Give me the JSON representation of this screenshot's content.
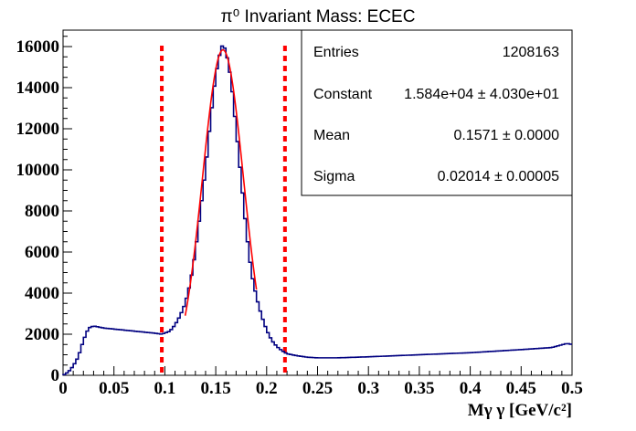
{
  "chart_data": {
    "type": "histogram",
    "title": "π⁰ Invariant Mass: ECEC",
    "xlabel": "Mγ γ [GeV/c²]",
    "ylabel": "",
    "xlim": [
      0,
      0.5
    ],
    "ylim": [
      0,
      16800
    ],
    "x_ticks": [
      "0",
      "0.05",
      "0.1",
      "0.15",
      "0.2",
      "0.25",
      "0.3",
      "0.35",
      "0.4",
      "0.45",
      "0.5"
    ],
    "y_ticks": [
      "0",
      "2000",
      "4000",
      "6000",
      "8000",
      "10000",
      "12000",
      "14000",
      "16000"
    ],
    "grid": false,
    "histogram_color": "#000080",
    "fit_color": "#ff0000",
    "cut_line_color": "#ff0000",
    "cut_lines_x": [
      0.097,
      0.218
    ],
    "fit": {
      "function": "gaus",
      "constant": 15840,
      "mean": 0.1571,
      "sigma": 0.02014,
      "range": [
        0.12,
        0.19
      ]
    },
    "histogram_points": [
      [
        0.0,
        0
      ],
      [
        0.005,
        150
      ],
      [
        0.01,
        450
      ],
      [
        0.015,
        900
      ],
      [
        0.02,
        1700
      ],
      [
        0.025,
        2300
      ],
      [
        0.03,
        2400
      ],
      [
        0.04,
        2300
      ],
      [
        0.05,
        2250
      ],
      [
        0.06,
        2200
      ],
      [
        0.07,
        2150
      ],
      [
        0.08,
        2100
      ],
      [
        0.09,
        2050
      ],
      [
        0.097,
        2000
      ],
      [
        0.105,
        2150
      ],
      [
        0.11,
        2450
      ],
      [
        0.115,
        2900
      ],
      [
        0.12,
        3500
      ],
      [
        0.125,
        4500
      ],
      [
        0.13,
        6000
      ],
      [
        0.135,
        8000
      ],
      [
        0.14,
        10000
      ],
      [
        0.145,
        12500
      ],
      [
        0.15,
        14600
      ],
      [
        0.155,
        15900
      ],
      [
        0.157,
        16100
      ],
      [
        0.16,
        15800
      ],
      [
        0.165,
        14400
      ],
      [
        0.17,
        12000
      ],
      [
        0.175,
        9500
      ],
      [
        0.18,
        7000
      ],
      [
        0.185,
        5000
      ],
      [
        0.19,
        3800
      ],
      [
        0.195,
        2900
      ],
      [
        0.2,
        2200
      ],
      [
        0.205,
        1700
      ],
      [
        0.21,
        1400
      ],
      [
        0.215,
        1200
      ],
      [
        0.22,
        1050
      ],
      [
        0.23,
        950
      ],
      [
        0.24,
        880
      ],
      [
        0.25,
        850
      ],
      [
        0.27,
        850
      ],
      [
        0.3,
        900
      ],
      [
        0.35,
        1000
      ],
      [
        0.4,
        1100
      ],
      [
        0.45,
        1250
      ],
      [
        0.48,
        1350
      ],
      [
        0.495,
        1550
      ],
      [
        0.5,
        1500
      ]
    ]
  },
  "stats_box": {
    "entries_label": "Entries",
    "entries_value": "1208163",
    "constant_label": "Constant",
    "constant_value": "1.584e+04 ± 4.030e+01",
    "mean_label": "Mean",
    "mean_value": "0.1571 ± 0.0000",
    "sigma_label": "Sigma",
    "sigma_value": "0.02014 ± 0.00005"
  }
}
